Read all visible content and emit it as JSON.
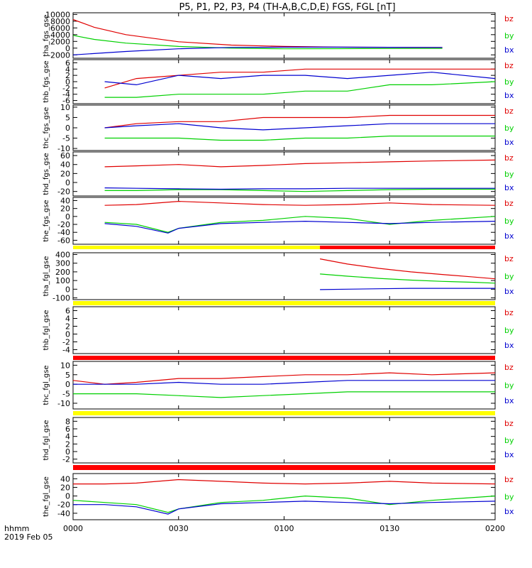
{
  "title": "P5, P1, P2, P3, P4 (TH-A,B,C,D,E) FGS, FGL [nT]",
  "footer": {
    "label": "hhmm",
    "date": "2019 Feb 05"
  },
  "colors": {
    "bz": "#e00000",
    "by": "#00d000",
    "bx": "#0000d0",
    "bar_yellow": "#ffff00",
    "bar_red": "#ff0000"
  },
  "chart_data": {
    "type": "line",
    "x_axis": {
      "label": "hhmm",
      "ticks": [
        "0000",
        "0030",
        "0100",
        "0130",
        "0200"
      ],
      "tick_hours": [
        0,
        0.5,
        1,
        1.5,
        2
      ],
      "range_hours": [
        0,
        2
      ]
    },
    "panels": [
      {
        "id": "tha_fgs",
        "ylabel": "tha_fgs_gse",
        "yrange": [
          -3000,
          10500
        ],
        "yticks": [
          10000,
          8000,
          6000,
          4000,
          2000,
          0,
          -2000
        ],
        "ytick_labels": [
          "10000",
          "8000",
          "6000",
          "4000",
          "2000",
          "0",
          "-2000"
        ],
        "series": [
          {
            "name": "bz",
            "x": [
              0,
              0.1,
              0.25,
              0.5,
              0.75,
              1.0,
              1.25,
              1.5,
              1.75
            ],
            "y": [
              8500,
              6200,
              4000,
              1900,
              900,
              500,
              300,
              250,
              200
            ]
          },
          {
            "name": "by",
            "x": [
              0,
              0.1,
              0.25,
              0.5,
              0.75,
              1.0,
              1.25,
              1.5,
              1.75
            ],
            "y": [
              3800,
              2600,
              1500,
              500,
              0,
              -200,
              -150,
              -100,
              -80
            ]
          },
          {
            "name": "bx",
            "x": [
              0,
              0.1,
              0.25,
              0.5,
              0.75,
              1.0,
              1.25,
              1.5,
              1.75
            ],
            "y": [
              -2000,
              -1600,
              -1000,
              -200,
              200,
              300,
              300,
              250,
              200
            ]
          }
        ]
      },
      {
        "id": "thb_fgs",
        "ylabel": "thb_fgs_gse",
        "yrange": [
          -7,
          7
        ],
        "yticks": [
          6,
          4,
          2,
          0,
          -2,
          -4,
          -6
        ],
        "ytick_labels": [
          "6",
          "4",
          "2",
          "0",
          "-2",
          "-4",
          "-6"
        ],
        "series": [
          {
            "name": "bz",
            "x": [
              0.15,
              0.3,
              0.5,
              0.7,
              0.9,
              1.1,
              1.3,
              1.5,
              1.7,
              2.0
            ],
            "y": [
              -2,
              1,
              2,
              3,
              3,
              4,
              4,
              4,
              4,
              4
            ]
          },
          {
            "name": "by",
            "x": [
              0.15,
              0.3,
              0.5,
              0.7,
              0.9,
              1.1,
              1.3,
              1.5,
              1.7,
              2.0
            ],
            "y": [
              -5,
              -5,
              -4,
              -4,
              -4,
              -3,
              -3,
              -1,
              -1,
              0
            ]
          },
          {
            "name": "bx",
            "x": [
              0.15,
              0.3,
              0.5,
              0.7,
              0.9,
              1.1,
              1.3,
              1.5,
              1.7,
              2.0
            ],
            "y": [
              0,
              -1,
              2,
              1,
              2,
              2,
              1,
              2,
              3,
              1
            ]
          }
        ]
      },
      {
        "id": "thc_fgs",
        "ylabel": "thc_fgs_gse",
        "yrange": [
          -11,
          11
        ],
        "yticks": [
          10,
          5,
          0,
          -5,
          -10
        ],
        "ytick_labels": [
          "10",
          "5",
          "0",
          "-5",
          "-10"
        ],
        "series": [
          {
            "name": "bz",
            "x": [
              0.15,
              0.3,
              0.5,
              0.7,
              0.9,
              1.1,
              1.3,
              1.5,
              1.7,
              2.0
            ],
            "y": [
              0,
              2,
              3,
              3,
              5,
              5,
              5,
              6,
              6,
              6
            ]
          },
          {
            "name": "by",
            "x": [
              0.15,
              0.3,
              0.5,
              0.7,
              0.9,
              1.1,
              1.3,
              1.5,
              1.7,
              2.0
            ],
            "y": [
              -5,
              -5,
              -5,
              -6,
              -6,
              -5,
              -5,
              -4,
              -4,
              -4
            ]
          },
          {
            "name": "bx",
            "x": [
              0.15,
              0.3,
              0.5,
              0.7,
              0.9,
              1.1,
              1.3,
              1.5,
              1.7,
              2.0
            ],
            "y": [
              0,
              1,
              2,
              0,
              -1,
              0,
              1,
              2,
              2,
              2
            ]
          }
        ]
      },
      {
        "id": "thd_fgs",
        "ylabel": "thd_fgs_gse",
        "yrange": [
          -30,
          68
        ],
        "yticks": [
          60,
          40,
          20,
          0,
          -20
        ],
        "ytick_labels": [
          "60",
          "40",
          "20",
          "0",
          "-20"
        ],
        "series": [
          {
            "name": "bz",
            "x": [
              0.15,
              0.3,
              0.5,
              0.7,
              0.9,
              1.1,
              1.3,
              1.5,
              1.7,
              2.0
            ],
            "y": [
              35,
              37,
              40,
              35,
              38,
              42,
              44,
              46,
              48,
              50
            ]
          },
          {
            "name": "by",
            "x": [
              0.15,
              0.3,
              0.5,
              0.7,
              0.9,
              1.1,
              1.3,
              1.5,
              1.7,
              2.0
            ],
            "y": [
              -18,
              -18,
              -16,
              -16,
              -18,
              -20,
              -18,
              -16,
              -15,
              -15
            ]
          },
          {
            "name": "bx",
            "x": [
              0.15,
              0.3,
              0.5,
              0.7,
              0.9,
              1.1,
              1.3,
              1.5,
              1.7,
              2.0
            ],
            "y": [
              -12,
              -13,
              -14,
              -15,
              -14,
              -14,
              -13,
              -13,
              -13,
              -13
            ]
          }
        ]
      },
      {
        "id": "the_fgs",
        "ylabel": "the_fgs_gse",
        "yrange": [
          -70,
          48
        ],
        "yticks": [
          40,
          20,
          0,
          -20,
          -40,
          -60
        ],
        "ytick_labels": [
          "40",
          "20",
          "0",
          "-20",
          "-40",
          "-60"
        ],
        "series": [
          {
            "name": "bz",
            "x": [
              0.15,
              0.3,
              0.5,
              0.7,
              0.9,
              1.1,
              1.3,
              1.5,
              1.7,
              2.0
            ],
            "y": [
              28,
              30,
              38,
              34,
              30,
              28,
              30,
              34,
              30,
              28
            ]
          },
          {
            "name": "by",
            "x": [
              0.15,
              0.3,
              0.45,
              0.5,
              0.7,
              0.9,
              1.1,
              1.3,
              1.5,
              1.7,
              2.0
            ],
            "y": [
              -15,
              -20,
              -40,
              -30,
              -15,
              -10,
              0,
              -5,
              -20,
              -10,
              0
            ]
          },
          {
            "name": "bx",
            "x": [
              0.15,
              0.3,
              0.45,
              0.5,
              0.7,
              0.9,
              1.1,
              1.3,
              1.5,
              1.7,
              2.0
            ],
            "y": [
              -18,
              -25,
              -42,
              -30,
              -18,
              -15,
              -12,
              -15,
              -18,
              -15,
              -12
            ]
          }
        ]
      },
      {
        "id": "tha_fgl",
        "ylabel": "tha_fgl_gse",
        "yrange": [
          -120,
          420
        ],
        "yticks": [
          400,
          300,
          200,
          100,
          0,
          -100
        ],
        "ytick_labels": [
          "400",
          "300",
          "200",
          "100",
          "0",
          "-100"
        ],
        "series": [
          {
            "name": "bz",
            "x": [
              1.17,
              1.3,
              1.45,
              1.6,
              1.75,
              1.9,
              2.0
            ],
            "y": [
              350,
              290,
              240,
              200,
              170,
              140,
              120
            ]
          },
          {
            "name": "by",
            "x": [
              1.17,
              1.3,
              1.45,
              1.6,
              1.75,
              1.9,
              2.0
            ],
            "y": [
              175,
              150,
              125,
              105,
              90,
              80,
              70
            ]
          },
          {
            "name": "bx",
            "x": [
              1.17,
              1.3,
              1.45,
              1.6,
              1.75,
              1.9,
              2.0
            ],
            "y": [
              -5,
              0,
              5,
              10,
              10,
              10,
              10
            ]
          }
        ]
      },
      {
        "id": "thb_fgl",
        "ylabel": "thb_fgl_gse",
        "yrange": [
          -5,
          7
        ],
        "yticks": [
          6,
          4,
          2,
          0,
          -2,
          -4
        ],
        "ytick_labels": [
          "6",
          "4",
          "2",
          "0",
          "-2",
          "-4"
        ],
        "series": []
      },
      {
        "id": "thc_fgl",
        "ylabel": "thc_fgl_gse",
        "yrange": [
          -13,
          12
        ],
        "yticks": [
          10,
          5,
          0,
          -5,
          -10
        ],
        "ytick_labels": [
          "10",
          "5",
          "0",
          "-5",
          "-10"
        ],
        "series": [
          {
            "name": "bz",
            "x": [
              0,
              0.15,
              0.3,
              0.5,
              0.7,
              0.9,
              1.1,
              1.3,
              1.5,
              1.7,
              2.0
            ],
            "y": [
              2,
              0,
              1,
              3,
              3,
              4,
              5,
              5,
              6,
              5,
              6
            ]
          },
          {
            "name": "by",
            "x": [
              0,
              0.15,
              0.3,
              0.5,
              0.7,
              0.9,
              1.1,
              1.3,
              1.5,
              1.7,
              2.0
            ],
            "y": [
              -5,
              -5,
              -5,
              -6,
              -7,
              -6,
              -5,
              -4,
              -4,
              -4,
              -4
            ]
          },
          {
            "name": "bx",
            "x": [
              0,
              0.15,
              0.3,
              0.5,
              0.7,
              0.9,
              1.1,
              1.3,
              1.5,
              1.7,
              2.0
            ],
            "y": [
              0,
              0,
              0,
              1,
              0,
              0,
              1,
              2,
              2,
              2,
              2
            ]
          }
        ]
      },
      {
        "id": "thd_fgl",
        "ylabel": "thd_fgl_gse",
        "yrange": [
          -3,
          9
        ],
        "yticks": [
          8,
          6,
          4,
          2,
          0,
          -2
        ],
        "ytick_labels": [
          "8",
          "6",
          "4",
          "2",
          "0",
          "-2"
        ],
        "series": []
      },
      {
        "id": "the_fgl",
        "ylabel": "the_fgl_gse",
        "yrange": [
          -55,
          52
        ],
        "yticks": [
          40,
          20,
          0,
          -20,
          -40
        ],
        "ytick_labels": [
          "40",
          "20",
          "0",
          "-20",
          "-40"
        ],
        "series": [
          {
            "name": "bz",
            "x": [
              0,
              0.15,
              0.3,
              0.5,
              0.7,
              0.9,
              1.1,
              1.3,
              1.5,
              1.7,
              2.0
            ],
            "y": [
              28,
              28,
              30,
              38,
              34,
              30,
              28,
              30,
              34,
              30,
              28
            ]
          },
          {
            "name": "by",
            "x": [
              0,
              0.15,
              0.3,
              0.45,
              0.5,
              0.7,
              0.9,
              1.1,
              1.3,
              1.5,
              1.7,
              2.0
            ],
            "y": [
              -10,
              -15,
              -20,
              -38,
              -30,
              -15,
              -10,
              0,
              -5,
              -20,
              -10,
              0
            ]
          },
          {
            "name": "bx",
            "x": [
              0,
              0.15,
              0.3,
              0.45,
              0.5,
              0.7,
              0.9,
              1.1,
              1.3,
              1.5,
              1.7,
              2.0
            ],
            "y": [
              -20,
              -20,
              -25,
              -42,
              -30,
              -18,
              -15,
              -12,
              -15,
              -18,
              -15,
              -12
            ]
          }
        ]
      }
    ],
    "legend": [
      "bz",
      "by",
      "bx"
    ],
    "status_bars": [
      {
        "after_panel": "the_fgs",
        "segments": [
          {
            "color": "yellow",
            "from": 0,
            "to": 1.17
          },
          {
            "color": "red",
            "from": 1.17,
            "to": 2.0
          }
        ]
      },
      {
        "after_panel": "tha_fgl",
        "segments": [
          {
            "color": "yellow",
            "from": 0,
            "to": 2.0
          }
        ]
      },
      {
        "after_panel": "thb_fgl",
        "segments": [
          {
            "color": "red",
            "from": 0,
            "to": 2.0
          }
        ]
      },
      {
        "after_panel": "thc_fgl",
        "segments": [
          {
            "color": "yellow",
            "from": 0,
            "to": 2.0
          }
        ]
      },
      {
        "after_panel": "thd_fgl",
        "segments": [
          {
            "color": "red",
            "from": 0,
            "to": 2.0
          }
        ]
      }
    ]
  }
}
